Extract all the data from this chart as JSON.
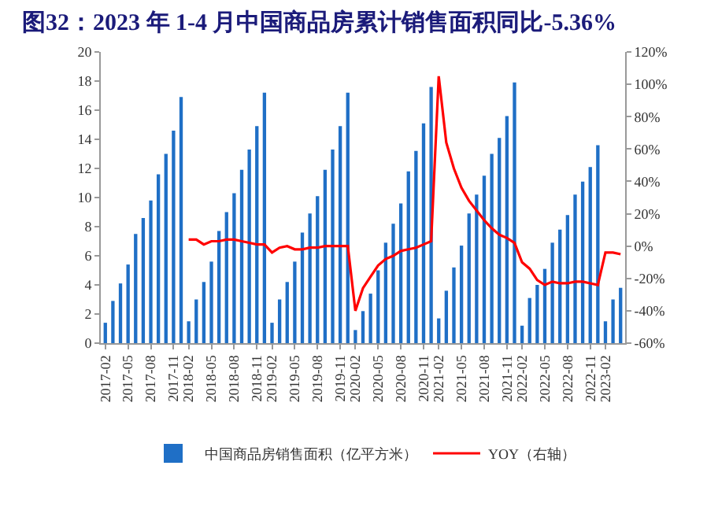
{
  "chart_data": {
    "type": "bar",
    "title": "图32：2023 年 1-4 月中国商品房累计销售面积同比-5.36%",
    "categories": [
      "2017-02",
      null,
      null,
      "2017-05",
      null,
      null,
      "2017-08",
      null,
      null,
      "2017-11",
      null,
      "2018-02",
      null,
      null,
      "2018-05",
      null,
      null,
      "2018-08",
      null,
      null,
      "2018-11",
      null,
      "2019-02",
      null,
      null,
      "2019-05",
      null,
      null,
      "2019-08",
      null,
      null,
      "2019-11",
      null,
      "2020-02",
      null,
      null,
      "2020-05",
      null,
      null,
      "2020-08",
      null,
      null,
      "2020-11",
      null,
      "2021-02",
      null,
      null,
      "2021-05",
      null,
      null,
      "2021-08",
      null,
      null,
      "2021-11",
      null,
      "2022-02",
      null,
      null,
      "2022-05",
      null,
      null,
      "2022-08",
      null,
      null,
      "2022-11",
      null,
      "2023-02",
      null,
      null
    ],
    "series": [
      {
        "name": "中国商品房销售面积（亿平方米）",
        "color": "#1f6fc6",
        "values": [
          1.4,
          2.9,
          4.1,
          5.4,
          7.5,
          8.6,
          9.8,
          11.6,
          13.0,
          14.6,
          16.9,
          1.5,
          3.0,
          4.2,
          5.6,
          7.7,
          9.0,
          10.3,
          11.9,
          13.3,
          14.9,
          17.2,
          1.4,
          3.0,
          4.2,
          5.6,
          7.6,
          8.9,
          10.1,
          11.9,
          13.3,
          14.9,
          17.2,
          0.9,
          2.2,
          3.4,
          5.0,
          6.9,
          8.2,
          9.6,
          11.8,
          13.2,
          15.1,
          17.6,
          1.7,
          3.6,
          5.2,
          6.7,
          8.9,
          10.2,
          11.5,
          13.0,
          14.1,
          15.6,
          17.9,
          1.2,
          3.1,
          4.0,
          5.1,
          6.9,
          7.8,
          8.8,
          10.2,
          11.1,
          12.1,
          13.6,
          1.5,
          3.0,
          3.8
        ]
      },
      {
        "name": "YOY（右轴）",
        "type": "line",
        "axis": "y2",
        "color": "#ff0000",
        "values": [
          null,
          null,
          null,
          null,
          null,
          null,
          null,
          null,
          null,
          null,
          null,
          4,
          4,
          1,
          3,
          3,
          4,
          4,
          3,
          2,
          1,
          1,
          -4,
          -1,
          0,
          -2,
          -2,
          -1,
          -1,
          0,
          0,
          0,
          0,
          -40,
          -26,
          -19,
          -12,
          -8,
          -6,
          -3,
          -2,
          -1,
          1,
          3,
          105,
          64,
          48,
          36,
          28,
          22,
          16,
          11,
          7,
          5,
          2,
          -10,
          -14,
          -21,
          -24,
          -22,
          -23,
          -23,
          -22,
          -22,
          -23,
          -24,
          -4,
          -4,
          -5
        ]
      }
    ],
    "ylim": [
      0,
      20
    ],
    "yticks": [
      0,
      2,
      4,
      6,
      8,
      10,
      12,
      14,
      16,
      18,
      20
    ],
    "y2lim": [
      -60,
      120
    ],
    "y2ticks": [
      {
        "value": -60,
        "label": "-60%"
      },
      {
        "value": -40,
        "label": "-40%"
      },
      {
        "value": -20,
        "label": "-20%"
      },
      {
        "value": 0,
        "label": "0%"
      },
      {
        "value": 20,
        "label": "20%"
      },
      {
        "value": 40,
        "label": "40%"
      },
      {
        "value": 60,
        "label": "60%"
      },
      {
        "value": 80,
        "label": "80%"
      },
      {
        "value": 100,
        "label": "100%"
      },
      {
        "value": 120,
        "label": "120%"
      }
    ],
    "grid": false,
    "legend": "bottom",
    "marker": "none",
    "line_style": "solid"
  }
}
